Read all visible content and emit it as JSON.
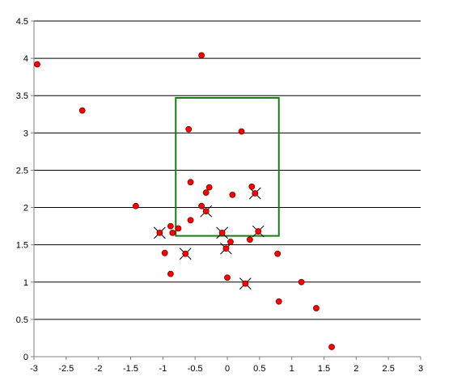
{
  "chart_data": {
    "type": "scatter",
    "title": "",
    "xlabel": "",
    "ylabel": "",
    "xlim": [
      -3,
      3
    ],
    "ylim": [
      0,
      4.5
    ],
    "x_ticks": [
      "-3",
      "-2.5",
      "-2",
      "-1.5",
      "-1",
      "-0.5",
      "0",
      "0.5",
      "1",
      "1.5",
      "2",
      "2.5",
      "3"
    ],
    "y_ticks": [
      "0",
      "0.5",
      "1",
      "1.5",
      "2",
      "2.5",
      "3",
      "3.5",
      "4",
      "4.5"
    ],
    "grid": "horizontal",
    "legend": "none",
    "colors": {
      "point": "#ff0000",
      "point_edge": "#7a0000",
      "box": "#1a7a1a",
      "grid": "#000000",
      "axis": "#808080",
      "cross": "#000000"
    },
    "series": [
      {
        "marker": "circle",
        "x": [
          -2.95,
          -2.25,
          -1.42,
          -0.4,
          -0.6,
          0.22,
          -0.57,
          -0.28,
          -0.33,
          0.38,
          0.08,
          -0.4,
          -0.57,
          -0.76,
          -0.88,
          -0.85,
          -1.05,
          -0.97,
          0.35,
          0.05,
          -0.08,
          -0.02,
          0.78,
          -0.88,
          0.0,
          0.28,
          1.15,
          0.8,
          1.38,
          1.62,
          -0.65,
          0.43,
          0.48,
          -0.33
        ],
        "y": [
          3.92,
          3.3,
          2.02,
          4.04,
          3.05,
          3.02,
          2.34,
          2.27,
          2.2,
          2.28,
          2.17,
          2.02,
          1.83,
          1.72,
          1.75,
          1.66,
          1.66,
          1.39,
          1.57,
          1.54,
          1.66,
          1.45,
          1.38,
          1.11,
          1.06,
          0.98,
          1.0,
          0.74,
          0.65,
          0.13,
          1.38,
          2.19,
          1.68,
          1.95
        ]
      }
    ],
    "crossed_points": {
      "x": [
        -1.05,
        -0.65,
        -0.33,
        -0.08,
        -0.02,
        0.28,
        0.43,
        0.48
      ],
      "y": [
        1.66,
        1.38,
        1.95,
        1.66,
        1.45,
        0.98,
        2.19,
        1.68
      ]
    },
    "box": {
      "x": [
        -0.8,
        0.8
      ],
      "y": [
        1.62,
        3.47
      ]
    }
  }
}
